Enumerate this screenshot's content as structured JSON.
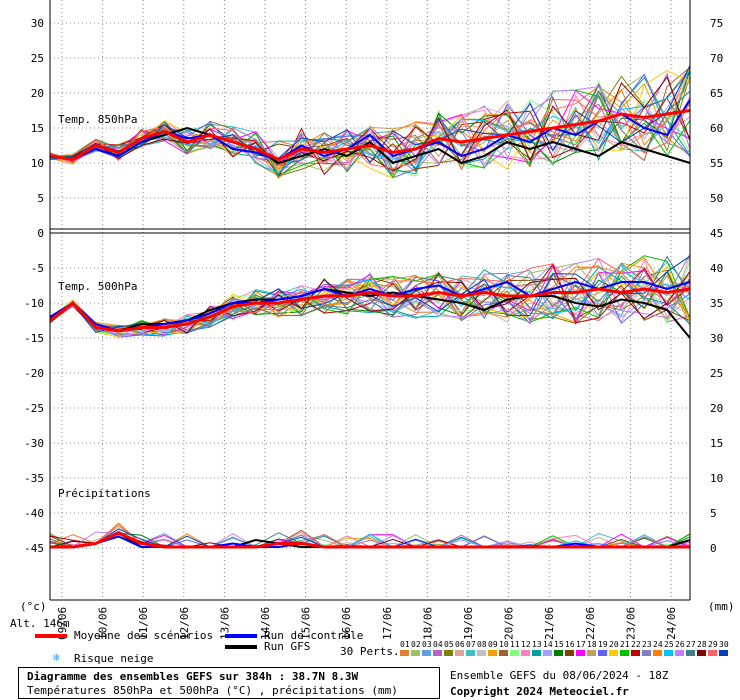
{
  "chart_data": {
    "type": "line",
    "days": [
      "09/06",
      "10/06",
      "11/06",
      "12/06",
      "13/06",
      "14/06",
      "15/06",
      "16/06",
      "17/06",
      "18/06",
      "19/06",
      "20/06",
      "21/06",
      "22/06",
      "23/06",
      "24/06"
    ],
    "left_ticks": [
      "30",
      "25",
      "20",
      "15",
      "10",
      "5",
      "0",
      "-5",
      "-10",
      "-15",
      "-20",
      "-25",
      "-30",
      "-35",
      "-40",
      "-45"
    ],
    "right_ticks_top": [
      "75",
      "70",
      "65",
      "60",
      "55",
      "50"
    ],
    "right_ticks_bottom": [
      "45",
      "40",
      "35",
      "30",
      "25",
      "20",
      "15",
      "10",
      "5",
      "0"
    ],
    "left_unit": "(°c)",
    "right_unit": "(mm)",
    "panels": {
      "t850_label": "Temp. 850hPa",
      "t500_label": "Temp. 500hPa",
      "precip_label": "Précipitations"
    },
    "altitude_label": "Alt. 146m",
    "series": [
      {
        "name": "Moyenne des scénarios",
        "color": "#ff0000",
        "t850": [
          11,
          10.5,
          12.5,
          11.5,
          13.5,
          14.5,
          13,
          14,
          13,
          12,
          10.5,
          12,
          11.5,
          12,
          12.5,
          11.5,
          12,
          13.5,
          13,
          13.5,
          14,
          14.5,
          15,
          15.5,
          16,
          17,
          16.5,
          17,
          17.5
        ],
        "t500": [
          -12.5,
          -10,
          -13.5,
          -14,
          -13.5,
          -13.5,
          -13,
          -12,
          -10.5,
          -10,
          -10,
          -9.5,
          -9,
          -9,
          -8.5,
          -9,
          -9,
          -8.5,
          -9,
          -8.5,
          -9,
          -9,
          -8.5,
          -8.5,
          -8,
          -8.5,
          -8,
          -8.5,
          -8
        ],
        "precip": [
          0,
          0,
          0.5,
          2,
          0.5,
          0,
          0,
          0,
          0,
          0,
          0.5,
          0.5,
          0,
          0,
          0,
          0,
          0,
          0,
          0,
          0,
          0,
          0,
          0,
          0,
          0,
          0,
          0,
          0,
          0
        ]
      },
      {
        "name": "Run de contrôle",
        "color": "#0000ff",
        "t850": [
          11,
          10.5,
          12,
          11,
          13,
          14.5,
          13.5,
          14,
          12,
          11.5,
          10.5,
          12.5,
          11,
          12,
          14,
          11,
          12,
          13,
          11,
          12,
          14,
          13,
          15,
          14,
          16,
          17,
          15,
          14,
          19
        ],
        "t500": [
          -12,
          -10,
          -13,
          -14,
          -13.5,
          -13,
          -12.5,
          -11.5,
          -10,
          -10,
          -9.5,
          -9,
          -8,
          -9,
          -8,
          -9,
          -8,
          -7.5,
          -9,
          -8,
          -7,
          -9,
          -8,
          -7,
          -8,
          -7,
          -7,
          -8,
          -7
        ],
        "precip": [
          0,
          0,
          0.5,
          1.5,
          0,
          0,
          0,
          0,
          0.5,
          0,
          0,
          0.5,
          0,
          0,
          0,
          0,
          0,
          0,
          0,
          0,
          0,
          0,
          0,
          0.5,
          0,
          0,
          0,
          0,
          0
        ]
      },
      {
        "name": "Run GFS",
        "color": "#000000",
        "t850": [
          11,
          10.5,
          12,
          11,
          13,
          14,
          15,
          14,
          13,
          12,
          10,
          11,
          12,
          11,
          13,
          10,
          11,
          12,
          10,
          11,
          13,
          12,
          13,
          12,
          11,
          13,
          12,
          11,
          10
        ],
        "t500": [
          -12,
          -10,
          -13.5,
          -14,
          -13,
          -13,
          -12.5,
          -11,
          -10,
          -9.5,
          -9.5,
          -9,
          -8,
          -8.5,
          -9,
          -8.5,
          -9,
          -9.5,
          -10,
          -11,
          -9.5,
          -9,
          -9,
          -10,
          -10.5,
          -9.5,
          -10,
          -11,
          -15
        ],
        "precip": [
          0,
          0,
          0.5,
          2,
          0,
          0,
          0,
          0,
          0,
          1,
          0.5,
          0,
          0,
          0,
          0,
          0,
          0,
          0,
          0,
          0,
          0,
          0,
          0,
          0,
          0,
          0,
          0,
          0,
          1
        ]
      }
    ]
  },
  "legend": {
    "mean": "Moyenne des scénarios",
    "control": "Run de contrôle",
    "gfs": "Run GFS",
    "snow": "Risque neige",
    "perts": "30 Perts.",
    "pert_numbers": [
      "01",
      "02",
      "03",
      "04",
      "05",
      "06",
      "07",
      "08",
      "09",
      "10",
      "11",
      "12",
      "13",
      "14",
      "15",
      "16",
      "17",
      "18",
      "19",
      "20",
      "21",
      "22",
      "23",
      "24",
      "25",
      "26",
      "27",
      "28",
      "29",
      "30"
    ],
    "pert_colors": [
      "#e08030",
      "#a0c060",
      "#60a0e0",
      "#c060c0",
      "#808000",
      "#e0a0a0",
      "#40c0c0",
      "#c0c0c0",
      "#f0a000",
      "#a06030",
      "#80ff80",
      "#ff80c0",
      "#00a0a0",
      "#a0a0ff",
      "#008000",
      "#804000",
      "#ff00ff",
      "#c0a060",
      "#6060ff",
      "#ffcc00",
      "#00c000",
      "#c00000",
      "#8080c0",
      "#ff8000",
      "#00c0ff",
      "#c080ff",
      "#408080",
      "#800000",
      "#ff6060",
      "#0040c0"
    ]
  },
  "info": {
    "title": "Diagramme des ensembles GEFS sur 384h : 38.7N 8.3W",
    "subtitle": "Températures 850hPa et 500hPa (°C) , précipitations (mm)",
    "run": "Ensemble GEFS du 08/06/2024 - 18Z",
    "copyright": "Copyright 2024 Meteociel.fr"
  }
}
